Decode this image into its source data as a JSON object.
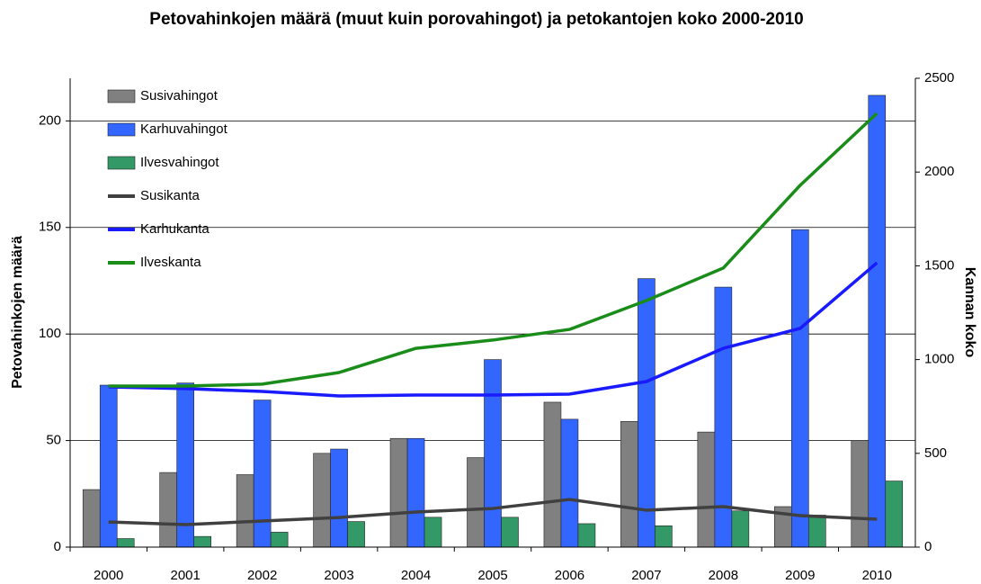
{
  "chart_data": {
    "type": "bar-line",
    "title": "Petovahinkojen määrä (muut kuin porovahingot) ja petokantojen koko 2000-2010",
    "ylabel": "Petovahinkojen määrä",
    "y2label": "Kannan koko",
    "categories": [
      "2000",
      "2001",
      "2002",
      "2003",
      "2004",
      "2005",
      "2006",
      "2007",
      "2008",
      "2009",
      "2010"
    ],
    "series": [
      {
        "name": "Susivahingot",
        "type": "bar",
        "color": "#808080",
        "values": [
          27,
          35,
          34,
          44,
          51,
          42,
          68,
          59,
          54,
          19,
          50
        ]
      },
      {
        "name": "Karhuvahingot",
        "type": "bar",
        "color": "#3366ff",
        "values": [
          76,
          77,
          69,
          46,
          51,
          88,
          60,
          126,
          122,
          149,
          212
        ]
      },
      {
        "name": "Ilvesvahingot",
        "type": "bar",
        "color": "#339966",
        "values": [
          4,
          5,
          7,
          12,
          14,
          14,
          11,
          10,
          17,
          15,
          31
        ]
      },
      {
        "name": "Susikanta",
        "type": "line",
        "axis": "y2",
        "color": "#404040",
        "values": [
          134,
          120,
          139,
          158,
          187,
          206,
          254,
          197,
          216,
          168,
          149
        ]
      },
      {
        "name": "Karhukanta",
        "type": "line",
        "axis": "y2",
        "color": "#1a1aff",
        "values": [
          854,
          845,
          830,
          806,
          811,
          811,
          816,
          883,
          1060,
          1166,
          1516
        ]
      },
      {
        "name": "Ilveskanta",
        "type": "line",
        "axis": "y2",
        "color": "#1a8c1a",
        "values": [
          859,
          859,
          869,
          931,
          1060,
          1104,
          1161,
          1315,
          1488,
          1929,
          2313
        ]
      }
    ],
    "ylim": [
      0,
      220
    ],
    "yticks": [
      0,
      50,
      100,
      150,
      200
    ],
    "y2lim": [
      0,
      2500
    ],
    "y2ticks": [
      0,
      500,
      1000,
      1500,
      2000,
      2500
    ],
    "grid": true,
    "legend": "top-left"
  }
}
